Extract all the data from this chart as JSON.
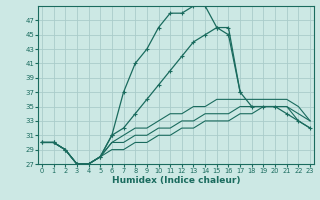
{
  "xlabel": "Humidex (Indice chaleur)",
  "bg_color": "#cce8e4",
  "grid_color": "#aaccca",
  "line_color": "#1a6b5e",
  "x_values": [
    0,
    1,
    2,
    3,
    4,
    5,
    6,
    7,
    8,
    9,
    10,
    11,
    12,
    13,
    14,
    15,
    16,
    17,
    18,
    19,
    20,
    21,
    22,
    23
  ],
  "series_main": [
    30,
    30,
    29,
    27,
    27,
    28,
    31,
    37,
    41,
    43,
    46,
    48,
    48,
    49,
    49,
    46,
    45,
    37,
    null,
    null,
    null,
    null,
    null,
    null
  ],
  "series_alt": [
    30,
    30,
    29,
    27,
    27,
    28,
    31,
    32,
    34,
    36,
    38,
    40,
    42,
    44,
    45,
    46,
    46,
    37,
    35,
    35,
    35,
    34,
    33,
    32
  ],
  "series_low": [
    30,
    30,
    29,
    27,
    27,
    28,
    29,
    29,
    30,
    30,
    31,
    31,
    32,
    32,
    33,
    33,
    33,
    34,
    34,
    35,
    35,
    35,
    33,
    32
  ],
  "series_mid": [
    30,
    30,
    29,
    27,
    27,
    28,
    30,
    30,
    31,
    31,
    32,
    32,
    33,
    33,
    34,
    34,
    34,
    35,
    35,
    35,
    35,
    35,
    34,
    33
  ],
  "series_hi": [
    30,
    30,
    29,
    27,
    27,
    28,
    30,
    31,
    32,
    32,
    33,
    34,
    34,
    35,
    35,
    36,
    36,
    36,
    36,
    36,
    36,
    36,
    35,
    33
  ],
  "ylim": [
    27,
    49
  ],
  "yticks": [
    27,
    29,
    31,
    33,
    35,
    37,
    39,
    41,
    43,
    45,
    47
  ],
  "xlim": [
    -0.3,
    23.3
  ]
}
